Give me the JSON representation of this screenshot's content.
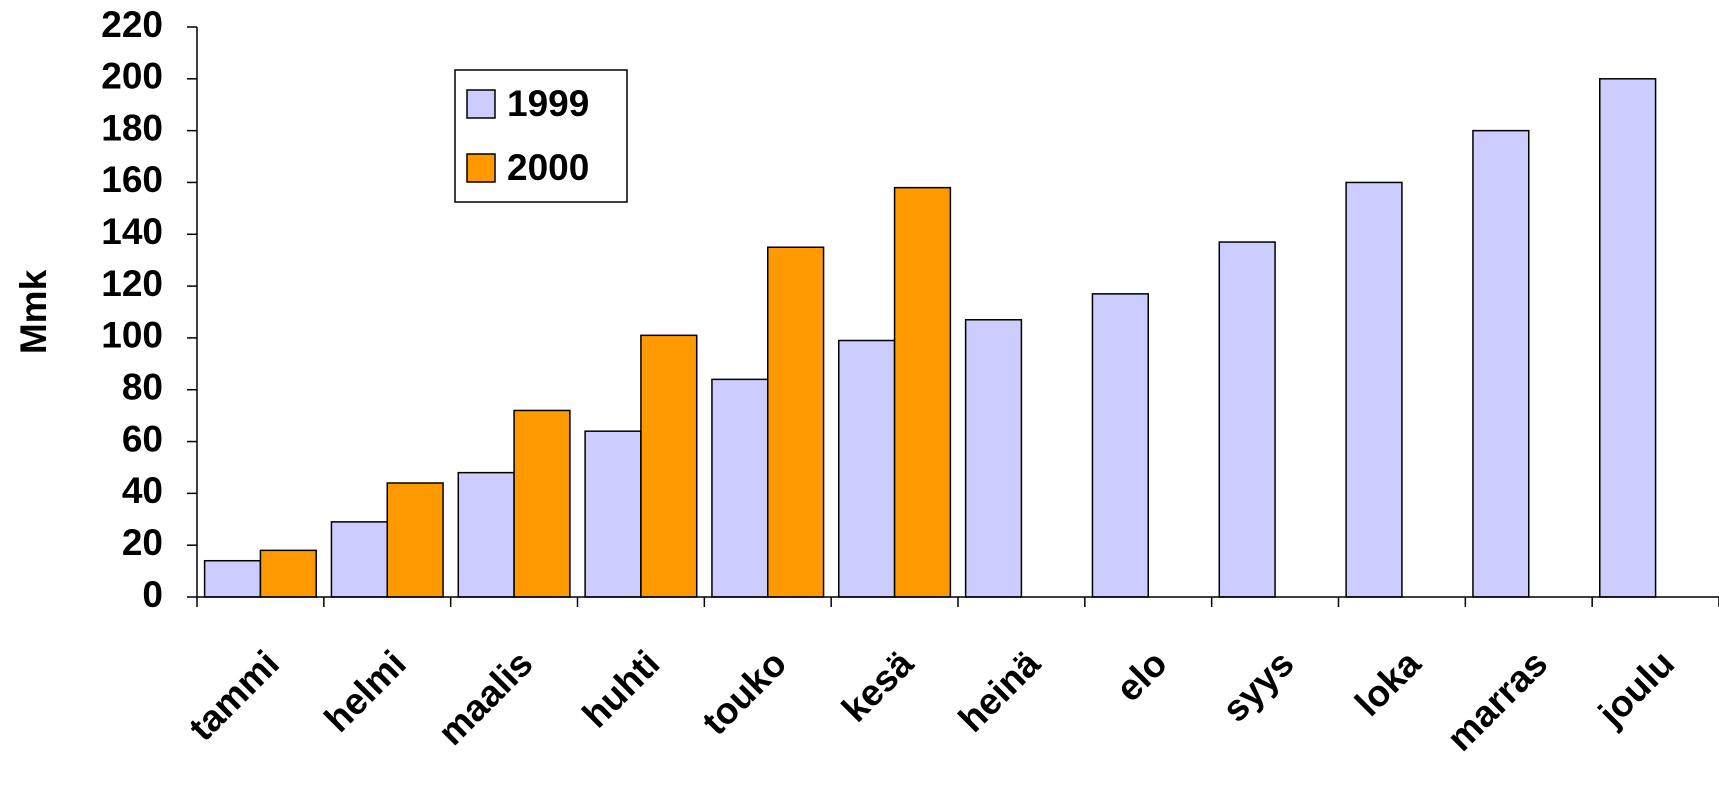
{
  "chart_data": {
    "type": "bar",
    "y_label": "Mmk",
    "categories": [
      "tammi",
      "helmi",
      "maalis",
      "huhti",
      "touko",
      "kesä",
      "heinä",
      "elo",
      "syys",
      "loka",
      "marras",
      "joulu"
    ],
    "series": [
      {
        "name": "1999",
        "color": "#ccccff",
        "values": [
          14,
          29,
          48,
          64,
          84,
          99,
          107,
          117,
          137,
          160,
          180,
          200
        ]
      },
      {
        "name": "2000",
        "color": "#ff9900",
        "values": [
          18,
          44,
          72,
          101,
          135,
          158,
          null,
          null,
          null,
          null,
          null,
          null
        ]
      }
    ],
    "ylim": [
      0,
      220
    ],
    "yticks": [
      0,
      20,
      40,
      60,
      80,
      100,
      120,
      140,
      160,
      180,
      200,
      220
    ],
    "grid": false,
    "legend": "upper-left"
  }
}
